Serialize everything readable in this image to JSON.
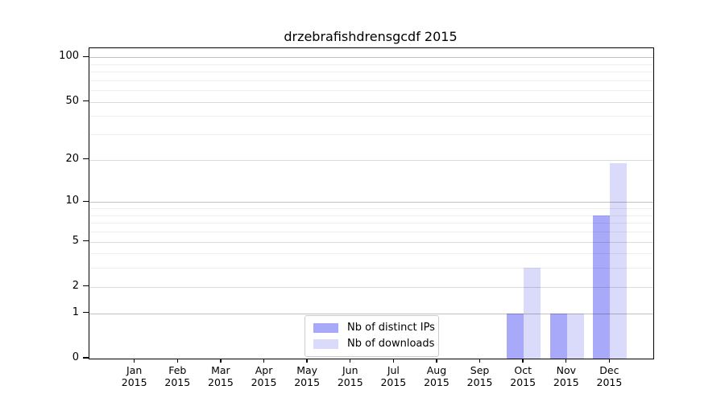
{
  "title": "drzebrafishdrensgcdf 2015",
  "chart_data": {
    "type": "bar",
    "title": "drzebrafishdrensgcdf 2015",
    "year": "2015",
    "categories": [
      "Jan",
      "Feb",
      "Mar",
      "Apr",
      "May",
      "Jun",
      "Jul",
      "Aug",
      "Sep",
      "Oct",
      "Nov",
      "Dec"
    ],
    "series": [
      {
        "name": "Nb of distinct IPs",
        "color": "#a9a9f9",
        "values": [
          0,
          0,
          0,
          0,
          0,
          0,
          0,
          0,
          0,
          1,
          1,
          8
        ]
      },
      {
        "name": "Nb of downloads",
        "color": "#dadafa",
        "values": [
          0,
          0,
          0,
          0,
          0,
          0,
          0,
          0,
          0,
          3,
          1,
          19
        ]
      }
    ],
    "yscale": "log1p",
    "ylim": [
      0,
      115
    ],
    "y_major_ticks": [
      0,
      1,
      2,
      5,
      10,
      20,
      50,
      100
    ],
    "y_emphasis_ticks": [
      1,
      10,
      100
    ],
    "y_minor_ticks": [
      3,
      4,
      6,
      7,
      8,
      9,
      30,
      40,
      60,
      70,
      80,
      90
    ],
    "grid": true,
    "legend_position": "lower center"
  }
}
